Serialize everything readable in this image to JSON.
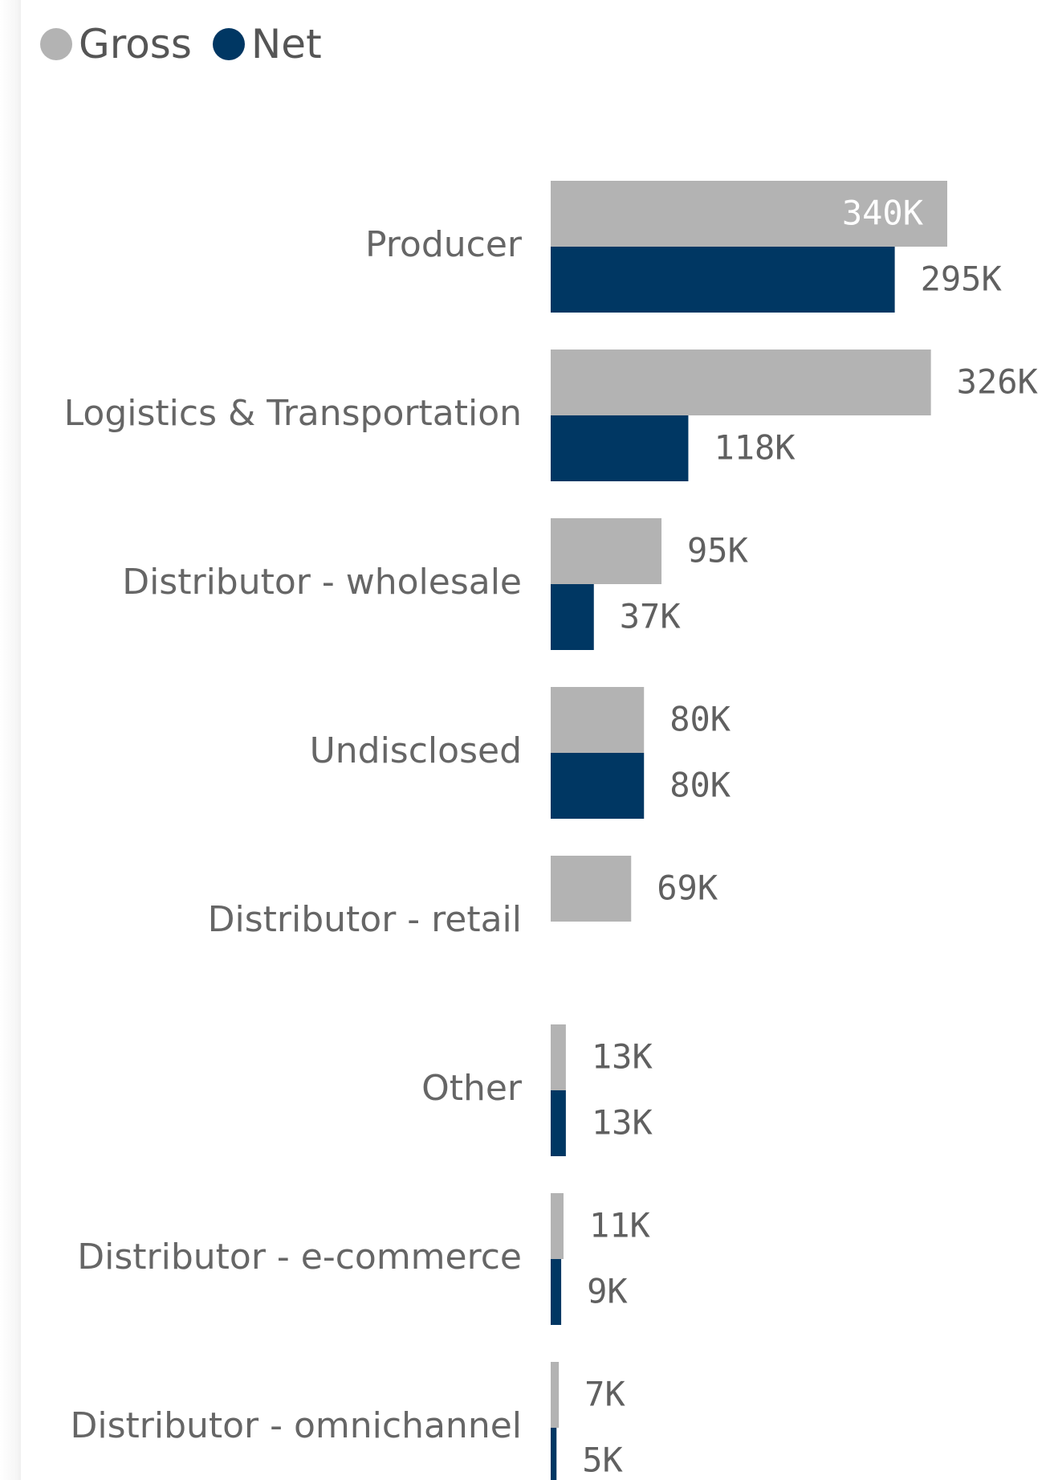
{
  "legend": {
    "items": [
      {
        "label": "Gross",
        "color": "#b3b3b3"
      },
      {
        "label": "Net",
        "color": "#003763"
      }
    ]
  },
  "chart_data": {
    "type": "bar",
    "orientation": "horizontal",
    "categories": [
      "Producer",
      "Logistics & Transportation",
      "Distributor - wholesale",
      "Undisclosed",
      "Distributor - retail",
      "Other",
      "Distributor - e-commerce",
      "Distributor - omnichannel"
    ],
    "series": [
      {
        "name": "Gross",
        "color": "#b3b3b3",
        "values": [
          340000,
          326000,
          95000,
          80000,
          69000,
          13000,
          11000,
          7000
        ],
        "labels": [
          "340K",
          "326K",
          "95K",
          "80K",
          "69K",
          "13K",
          "11K",
          "7K"
        ]
      },
      {
        "name": "Net",
        "color": "#003763",
        "values": [
          295000,
          118000,
          37000,
          80000,
          0,
          13000,
          9000,
          5000
        ],
        "labels": [
          "295K",
          "118K",
          "37K",
          "80K",
          "",
          "13K",
          "9K",
          "5K"
        ]
      }
    ],
    "legend_position": "top-left",
    "grid": false,
    "xlim": [
      0,
      340000
    ]
  }
}
